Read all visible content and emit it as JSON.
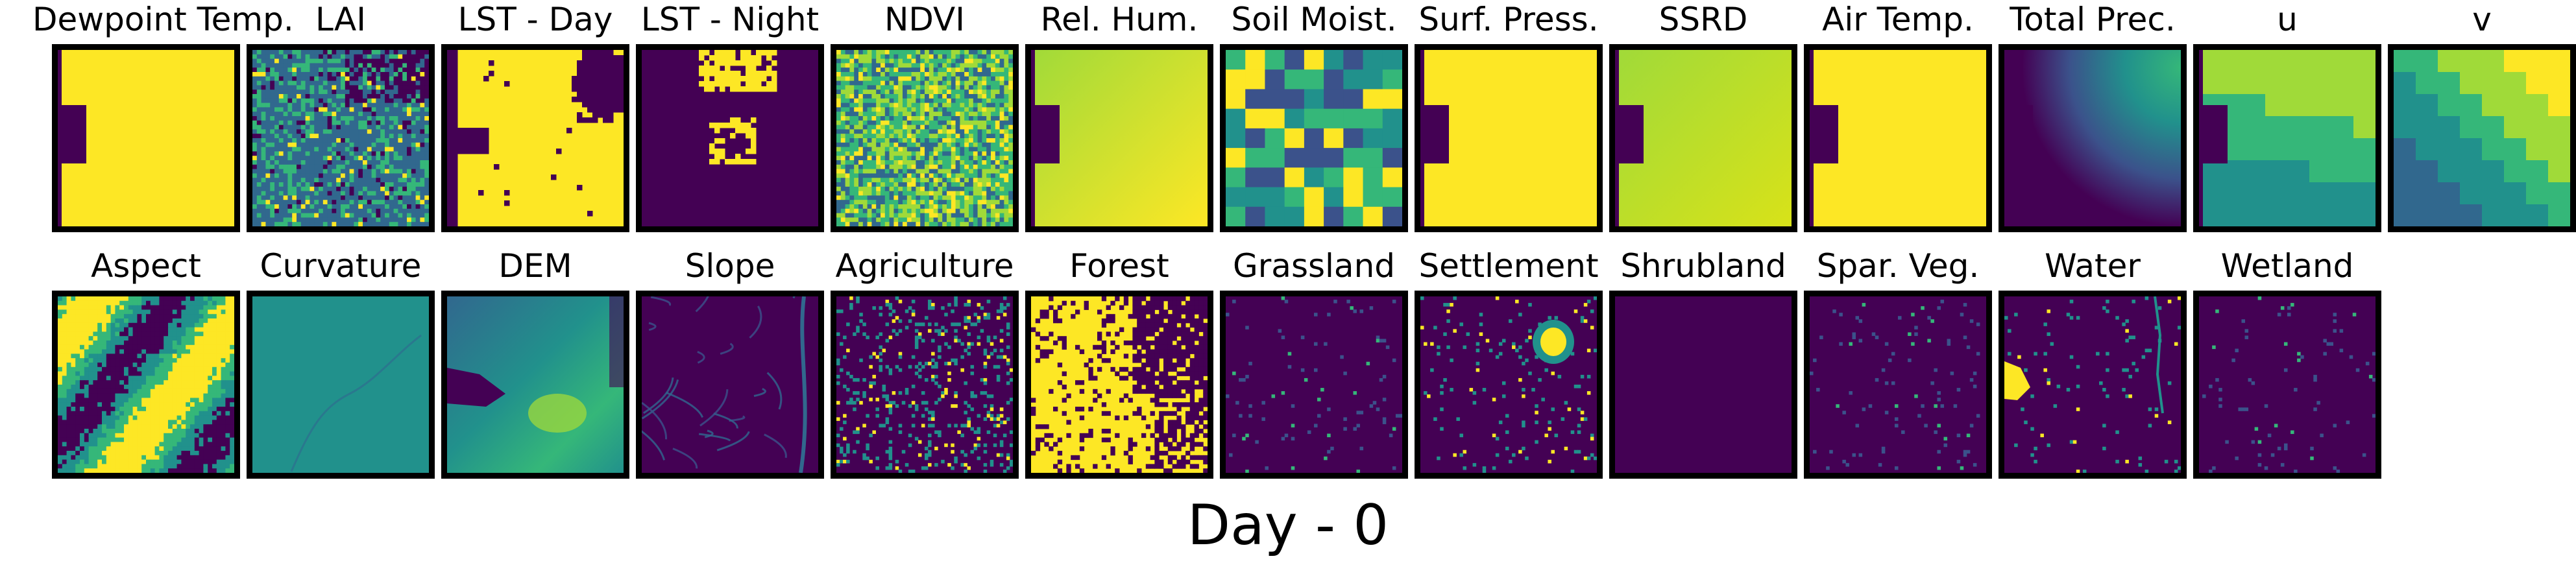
{
  "figure": {
    "caption": "Day - 0",
    "rows": [
      {
        "panels": [
          {
            "key": "dewpoint",
            "title": "Dewpoint Temp.",
            "pattern": "notch",
            "colors": [
              "#440154",
              "#fde725"
            ]
          },
          {
            "key": "lai",
            "title": "LAI",
            "pattern": "noise",
            "colors": [
              "#440154",
              "#31688e",
              "#35b779",
              "#fde725"
            ]
          },
          {
            "key": "lst_day",
            "title": "LST - Day",
            "pattern": "blobs-dark",
            "colors": [
              "#440154",
              "#fde725"
            ]
          },
          {
            "key": "lst_night",
            "title": "LST - Night",
            "pattern": "blobs-bright",
            "colors": [
              "#440154",
              "#fde725"
            ]
          },
          {
            "key": "ndvi",
            "title": "NDVI",
            "pattern": "noise-bright",
            "colors": [
              "#31688e",
              "#35b779",
              "#a0da39",
              "#fde725"
            ]
          },
          {
            "key": "rel_hum",
            "title": "Rel. Hum.",
            "pattern": "gradient-notch",
            "colors": [
              "#440154",
              "#a0da39",
              "#fde725"
            ]
          },
          {
            "key": "soil_moist",
            "title": "Soil Moist.",
            "pattern": "blocks",
            "colors": [
              "#3b528b",
              "#21918c",
              "#35b779",
              "#fde725"
            ]
          },
          {
            "key": "surf_press",
            "title": "Surf. Press.",
            "pattern": "notch",
            "colors": [
              "#440154",
              "#fde725"
            ]
          },
          {
            "key": "ssrd",
            "title": "SSRD",
            "pattern": "gradient-notch",
            "colors": [
              "#440154",
              "#a0da39",
              "#d8e219"
            ]
          },
          {
            "key": "air_temp",
            "title": "Air Temp.",
            "pattern": "notch",
            "colors": [
              "#440154",
              "#fde725"
            ]
          },
          {
            "key": "total_prec",
            "title": "Total Prec.",
            "pattern": "prec",
            "colors": [
              "#440154",
              "#3b528b",
              "#21918c",
              "#35b779"
            ]
          },
          {
            "key": "u",
            "title": "u",
            "pattern": "u",
            "colors": [
              "#440154",
              "#21918c",
              "#35b779",
              "#a0da39"
            ]
          },
          {
            "key": "v",
            "title": "v",
            "pattern": "v",
            "colors": [
              "#31688e",
              "#21918c",
              "#35b779",
              "#a0da39",
              "#fde725"
            ]
          }
        ]
      },
      {
        "panels": [
          {
            "key": "aspect",
            "title": "Aspect",
            "pattern": "aspect",
            "colors": [
              "#440154",
              "#21918c",
              "#35b779",
              "#fde725"
            ]
          },
          {
            "key": "curvature",
            "title": "Curvature",
            "pattern": "flat-teal",
            "colors": [
              "#21918c",
              "#2a788e"
            ]
          },
          {
            "key": "dem",
            "title": "DEM",
            "pattern": "dem",
            "colors": [
              "#440154",
              "#31688e",
              "#21918c",
              "#35b779",
              "#a0da39"
            ]
          },
          {
            "key": "slope",
            "title": "Slope",
            "pattern": "slope",
            "colors": [
              "#440154",
              "#3b528b",
              "#31688e"
            ]
          },
          {
            "key": "agriculture",
            "title": "Agriculture",
            "pattern": "sparse-med",
            "colors": [
              "#440154",
              "#21918c",
              "#fde725"
            ]
          },
          {
            "key": "forest",
            "title": "Forest",
            "pattern": "forest",
            "colors": [
              "#440154",
              "#fde725"
            ]
          },
          {
            "key": "grassland",
            "title": "Grassland",
            "pattern": "sparse-low",
            "colors": [
              "#440154",
              "#3b528b",
              "#35b779"
            ]
          },
          {
            "key": "settlement",
            "title": "Settlement",
            "pattern": "settlement",
            "colors": [
              "#440154",
              "#21918c",
              "#fde725"
            ]
          },
          {
            "key": "shrubland",
            "title": "Shrubland",
            "pattern": "empty",
            "colors": [
              "#440154"
            ]
          },
          {
            "key": "spar_veg",
            "title": "Spar. Veg.",
            "pattern": "sparse-low",
            "colors": [
              "#440154",
              "#3b528b",
              "#35b779"
            ]
          },
          {
            "key": "water",
            "title": "Water",
            "pattern": "water",
            "colors": [
              "#440154",
              "#21918c",
              "#fde725"
            ]
          },
          {
            "key": "wetland",
            "title": "Wetland",
            "pattern": "sparse-low",
            "colors": [
              "#440154",
              "#3b528b",
              "#35b779"
            ]
          }
        ]
      }
    ]
  }
}
